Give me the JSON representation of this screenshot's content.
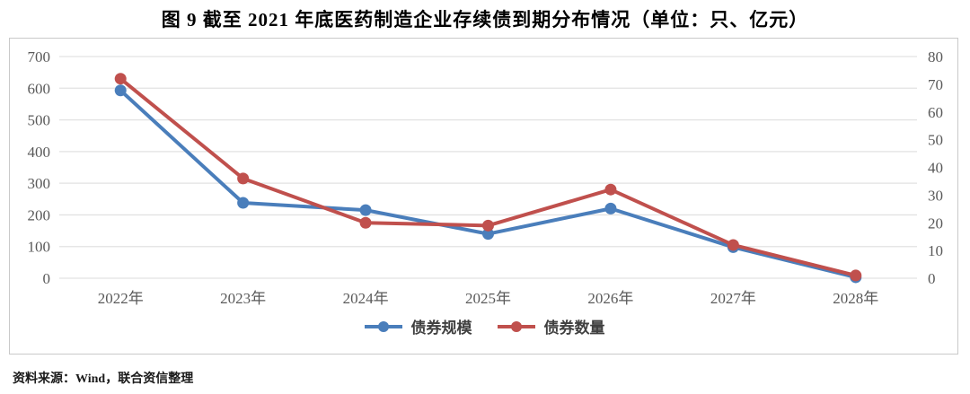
{
  "chart_data": {
    "type": "line",
    "title": "图 9  截至 2021 年底医药制造企业存续债到期分布情况（单位：只、亿元）",
    "categories": [
      "2022年",
      "2023年",
      "2024年",
      "2025年",
      "2026年",
      "2027年",
      "2028年"
    ],
    "series": [
      {
        "name": "债券规模",
        "axis": "left",
        "color": "#4a7ebb",
        "values": [
          593,
          238,
          215,
          140,
          220,
          98,
          3
        ]
      },
      {
        "name": "债券数量",
        "axis": "right",
        "color": "#c0504d",
        "values": [
          72,
          36,
          20,
          19,
          32,
          12,
          1
        ]
      }
    ],
    "left_axis": {
      "ticks": [
        700,
        600,
        500,
        400,
        300,
        200,
        100,
        0
      ],
      "min": 0,
      "max": 700
    },
    "right_axis": {
      "ticks": [
        80,
        70,
        60,
        50,
        40,
        30,
        20,
        10,
        0
      ],
      "min": 0,
      "max": 80
    },
    "grid": true,
    "legend_position": "bottom",
    "gridline_color": "#e2e2e2",
    "tick_color": "#595959"
  },
  "source_note": "资料来源：Wind，联合资信整理"
}
